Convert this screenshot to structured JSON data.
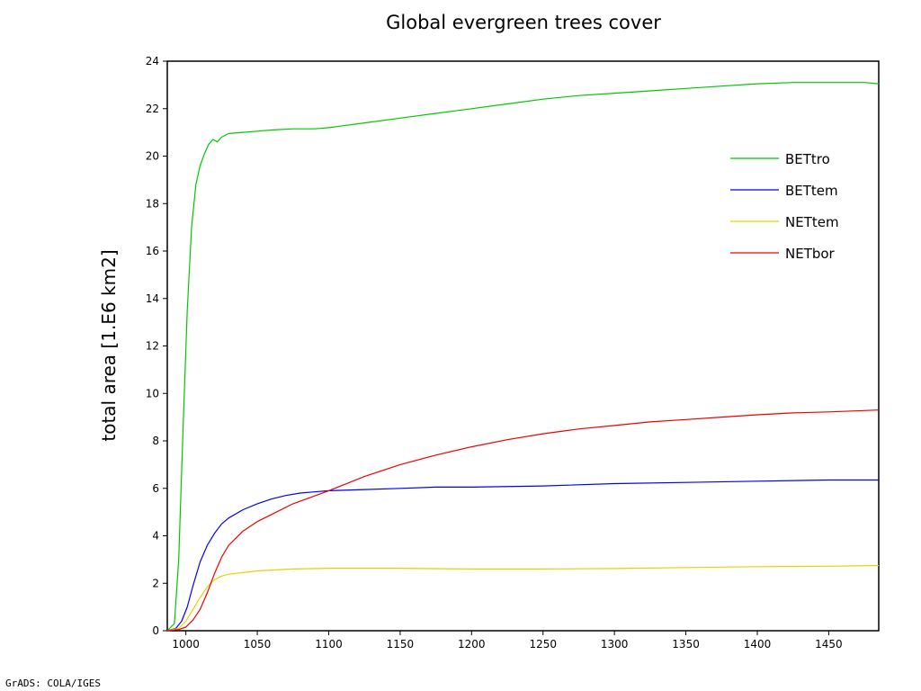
{
  "footer": "GrADS: COLA/IGES",
  "chart_data": {
    "type": "line",
    "title": "Global evergreen trees cover",
    "xlabel": "",
    "ylabel": "total area [1.E6 km2]",
    "xlim": [
      987,
      1485
    ],
    "ylim": [
      0,
      24
    ],
    "xticks": [
      1000,
      1050,
      1100,
      1150,
      1200,
      1250,
      1300,
      1350,
      1400,
      1450
    ],
    "yticks": [
      0,
      2,
      4,
      6,
      8,
      10,
      12,
      14,
      16,
      18,
      20,
      22,
      24
    ],
    "grid": false,
    "legend_position": "top-right",
    "series": [
      {
        "name": "BETtro",
        "color": "#00c800",
        "x": [
          987,
          992,
          995,
          998,
          1001,
          1004,
          1007,
          1010,
          1013,
          1016,
          1019,
          1022,
          1025,
          1030,
          1040,
          1050,
          1060,
          1075,
          1090,
          1100,
          1125,
          1150,
          1175,
          1200,
          1225,
          1250,
          1275,
          1300,
          1325,
          1350,
          1375,
          1400,
          1425,
          1450,
          1475,
          1485
        ],
        "y": [
          0,
          0.3,
          3.0,
          8.5,
          13.5,
          17.0,
          18.8,
          19.6,
          20.1,
          20.5,
          20.7,
          20.6,
          20.8,
          20.95,
          21.0,
          21.05,
          21.1,
          21.15,
          21.15,
          21.2,
          21.4,
          21.6,
          21.8,
          22.0,
          22.2,
          22.4,
          22.55,
          22.65,
          22.75,
          22.85,
          22.95,
          23.05,
          23.1,
          23.1,
          23.1,
          23.05
        ]
      },
      {
        "name": "BETtem",
        "color": "#0000ff",
        "x": [
          987,
          993,
          997,
          1001,
          1005,
          1010,
          1015,
          1020,
          1025,
          1030,
          1040,
          1050,
          1060,
          1070,
          1080,
          1090,
          1100,
          1125,
          1150,
          1175,
          1200,
          1250,
          1300,
          1350,
          1400,
          1450,
          1485
        ],
        "y": [
          0,
          0.1,
          0.4,
          1.0,
          1.9,
          2.9,
          3.6,
          4.1,
          4.5,
          4.75,
          5.1,
          5.35,
          5.55,
          5.7,
          5.8,
          5.85,
          5.9,
          5.95,
          6.0,
          6.05,
          6.05,
          6.1,
          6.2,
          6.25,
          6.3,
          6.35,
          6.35
        ]
      },
      {
        "name": "NETtem",
        "color": "#e6d200",
        "x": [
          987,
          995,
          1000,
          1005,
          1010,
          1015,
          1020,
          1025,
          1030,
          1040,
          1050,
          1075,
          1100,
          1150,
          1200,
          1250,
          1300,
          1350,
          1400,
          1450,
          1485
        ],
        "y": [
          0,
          0.1,
          0.4,
          0.9,
          1.4,
          1.85,
          2.15,
          2.3,
          2.38,
          2.45,
          2.52,
          2.6,
          2.63,
          2.63,
          2.6,
          2.6,
          2.62,
          2.66,
          2.7,
          2.72,
          2.75
        ]
      },
      {
        "name": "NETbor",
        "color": "#f00000",
        "x": [
          987,
          995,
          1000,
          1005,
          1010,
          1015,
          1020,
          1025,
          1030,
          1040,
          1050,
          1060,
          1075,
          1100,
          1125,
          1150,
          1175,
          1200,
          1225,
          1250,
          1275,
          1300,
          1325,
          1350,
          1375,
          1400,
          1425,
          1450,
          1485
        ],
        "y": [
          0,
          0.05,
          0.15,
          0.45,
          0.9,
          1.6,
          2.4,
          3.1,
          3.6,
          4.2,
          4.6,
          4.9,
          5.35,
          5.9,
          6.5,
          7.0,
          7.4,
          7.75,
          8.05,
          8.3,
          8.5,
          8.65,
          8.8,
          8.9,
          9.0,
          9.1,
          9.18,
          9.22,
          9.3
        ]
      }
    ]
  }
}
